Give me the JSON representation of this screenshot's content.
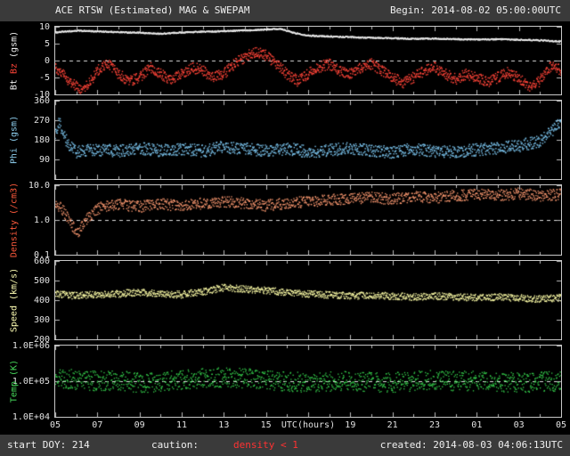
{
  "header": {
    "title": "ACE RTSW (Estimated) MAG & SWEPAM",
    "begin": "Begin: 2014-08-02 05:00:00UTC"
  },
  "footer": {
    "start_doy": "start DOY: 214",
    "caution_label": "caution:",
    "caution_value": "density < 1",
    "caution_color": "#ff3232",
    "created": "created: 2014-08-03 04:06:13UTC"
  },
  "colors": {
    "background": "#000000",
    "strip": "#3a3a3a",
    "frame": "#c8c8c8",
    "text": "#f0f0f0",
    "dashed_line": "#dddddd"
  },
  "chart_data": {
    "type": "scatter",
    "title": "ACE RTSW (Estimated) MAG & SWEPAM",
    "begin_time": "2014-08-02 05:00:00UTC",
    "created_time": "2014-08-03 04:06:13UTC",
    "start_doy": 214,
    "cadence_hours": 0.0167,
    "x": {
      "label": "UTC(hours)",
      "range": [
        5,
        29
      ],
      "tick_step_hours": 2,
      "ticks": [
        "05",
        "07",
        "09",
        "11",
        "13",
        "15",
        "17",
        "19",
        "21",
        "23",
        "01",
        "03",
        "05"
      ]
    },
    "panels": [
      {
        "id": "mag",
        "ylabel": "Bt Bz (gsm)",
        "ylabel_parts": [
          {
            "text": "Bt",
            "color": "#f2f2f2"
          },
          {
            "text": "Bz",
            "color": "#ff4438"
          },
          {
            "text": "(gsm)",
            "color": "#f2f2f2"
          }
        ],
        "scale": "linear",
        "ylim": [
          -10,
          10
        ],
        "yticks": [
          {
            "v": 10,
            "label": "10"
          },
          {
            "v": 5,
            "label": "5"
          },
          {
            "v": 0,
            "label": "0"
          },
          {
            "v": -5,
            "label": "-5"
          },
          {
            "v": -10,
            "label": "-10"
          }
        ],
        "dashed_at": 0,
        "series": [
          {
            "name": "Bt",
            "color": "#f2f2f2",
            "style": "line",
            "noise": 0.2,
            "dot": 1.3,
            "trend": [
              [
                5,
                8.3
              ],
              [
                6,
                8.8
              ],
              [
                7,
                8.6
              ],
              [
                8,
                8.4
              ],
              [
                9,
                8.2
              ],
              [
                10,
                7.9
              ],
              [
                11,
                8.3
              ],
              [
                12,
                8.5
              ],
              [
                13,
                8.7
              ],
              [
                14,
                8.9
              ],
              [
                15,
                9.2
              ],
              [
                15.7,
                9.4
              ],
              [
                16.3,
                8.2
              ],
              [
                17,
                7.4
              ],
              [
                18,
                7.1
              ],
              [
                19,
                6.9
              ],
              [
                20,
                6.7
              ],
              [
                21,
                6.6
              ],
              [
                22,
                6.4
              ],
              [
                23,
                6.5
              ],
              [
                24,
                6.3
              ],
              [
                25,
                6.2
              ],
              [
                26,
                6.3
              ],
              [
                27,
                6.1
              ],
              [
                28,
                6.0
              ],
              [
                29,
                5.6
              ]
            ]
          },
          {
            "name": "Bz",
            "color": "#ff4438",
            "style": "scatter",
            "noise": 1.6,
            "dot": 1.4,
            "trend": [
              [
                5,
                -2
              ],
              [
                5.5,
                -5
              ],
              [
                6,
                -7.5
              ],
              [
                6.3,
                -8.5
              ],
              [
                6.7,
                -6
              ],
              [
                7,
                -3
              ],
              [
                7.5,
                -1
              ],
              [
                8,
                -4
              ],
              [
                8.5,
                -6
              ],
              [
                9,
                -5
              ],
              [
                9.5,
                -2
              ],
              [
                10,
                -4
              ],
              [
                10.5,
                -6
              ],
              [
                11,
                -4
              ],
              [
                11.5,
                -2
              ],
              [
                12,
                -3
              ],
              [
                12.5,
                -5
              ],
              [
                13,
                -4
              ],
              [
                13.5,
                -1
              ],
              [
                14,
                1
              ],
              [
                14.5,
                2.5
              ],
              [
                15,
                1.5
              ],
              [
                15.5,
                -1
              ],
              [
                16,
                -4
              ],
              [
                16.5,
                -6
              ],
              [
                17,
                -4
              ],
              [
                17.5,
                -2
              ],
              [
                18,
                -1
              ],
              [
                18.5,
                -3
              ],
              [
                19,
                -4
              ],
              [
                19.5,
                -2
              ],
              [
                20,
                -1
              ],
              [
                20.5,
                -3
              ],
              [
                21,
                -5
              ],
              [
                21.5,
                -6.5
              ],
              [
                22,
                -5
              ],
              [
                22.5,
                -3
              ],
              [
                23,
                -2
              ],
              [
                23.5,
                -4
              ],
              [
                24,
                -5.5
              ],
              [
                24.5,
                -4
              ],
              [
                25,
                -5
              ],
              [
                25.5,
                -6.5
              ],
              [
                26,
                -5
              ],
              [
                26.5,
                -3.5
              ],
              [
                27,
                -5
              ],
              [
                27.3,
                -7
              ],
              [
                27.6,
                -8
              ],
              [
                28,
                -6
              ],
              [
                28.3,
                -3
              ],
              [
                28.6,
                -1.5
              ],
              [
                29,
                -3
              ]
            ]
          }
        ]
      },
      {
        "id": "phi",
        "ylabel": "Phi (gsm)",
        "ylabel_parts": [
          {
            "text": "Phi (gsm)",
            "color": "#8fd0f0"
          }
        ],
        "scale": "linear",
        "ylim": [
          0,
          360
        ],
        "yticks": [
          {
            "v": 360,
            "label": "360"
          },
          {
            "v": 270,
            "label": "270"
          },
          {
            "v": 180,
            "label": "180"
          },
          {
            "v": 90,
            "label": "90"
          }
        ],
        "dashed_at": null,
        "series": [
          {
            "name": "Phi",
            "color": "#79c1ea",
            "style": "scatter",
            "noise": 28,
            "dot": 1.4,
            "trend": [
              [
                5,
                210
              ],
              [
                5.2,
                265
              ],
              [
                5.4,
                200
              ],
              [
                5.7,
                150
              ],
              [
                6,
                125
              ],
              [
                7,
                135
              ],
              [
                8,
                128
              ],
              [
                9,
                140
              ],
              [
                10,
                130
              ],
              [
                11,
                138
              ],
              [
                12,
                128
              ],
              [
                13,
                148
              ],
              [
                14,
                138
              ],
              [
                15,
                128
              ],
              [
                16,
                140
              ],
              [
                17,
                125
              ],
              [
                18,
                132
              ],
              [
                19,
                142
              ],
              [
                20,
                130
              ],
              [
                21,
                122
              ],
              [
                22,
                138
              ],
              [
                23,
                128
              ],
              [
                24,
                126
              ],
              [
                25,
                134
              ],
              [
                26,
                142
              ],
              [
                27,
                152
              ],
              [
                28,
                175
              ],
              [
                28.4,
                205
              ],
              [
                28.7,
                235
              ],
              [
                29,
                262
              ]
            ]
          }
        ]
      },
      {
        "id": "density",
        "ylabel": "Density (/cm3)",
        "ylabel_parts": [
          {
            "text": "Density (/cm3)",
            "color": "#ff5a3c"
          }
        ],
        "scale": "log",
        "ylim": [
          0.1,
          10
        ],
        "yticks": [
          {
            "v": 10,
            "label": "10.0"
          },
          {
            "v": 1,
            "label": "1.0"
          },
          {
            "v": 0.1,
            "label": "0.1"
          }
        ],
        "dashed_at": 1,
        "series": [
          {
            "name": "Density",
            "color": "#ff9b72",
            "style": "scatter",
            "noise_factor": 1.45,
            "dot": 1.3,
            "trend": [
              [
                5,
                3.2
              ],
              [
                5.4,
                1.8
              ],
              [
                5.8,
                0.7
              ],
              [
                6.1,
                0.45
              ],
              [
                6.4,
                0.9
              ],
              [
                6.8,
                1.6
              ],
              [
                7.2,
                2.4
              ],
              [
                8,
                2.8
              ],
              [
                9,
                2.4
              ],
              [
                10,
                2.9
              ],
              [
                11,
                2.5
              ],
              [
                12,
                3.0
              ],
              [
                13,
                3.4
              ],
              [
                14,
                3.0
              ],
              [
                15,
                2.6
              ],
              [
                16,
                3.0
              ],
              [
                17,
                3.4
              ],
              [
                18,
                3.8
              ],
              [
                19,
                4.0
              ],
              [
                20,
                4.4
              ],
              [
                21,
                4.0
              ],
              [
                22,
                4.8
              ],
              [
                23,
                4.4
              ],
              [
                24,
                5.0
              ],
              [
                25,
                5.4
              ],
              [
                26,
                5.0
              ],
              [
                27,
                5.8
              ],
              [
                28,
                5.0
              ],
              [
                29,
                5.4
              ]
            ]
          }
        ]
      },
      {
        "id": "speed",
        "ylabel": "Speed (km/s)",
        "ylabel_parts": [
          {
            "text": "Speed (km/s)",
            "color": "#ffffb4"
          }
        ],
        "scale": "linear",
        "ylim": [
          200,
          600
        ],
        "yticks": [
          {
            "v": 600,
            "label": "600"
          },
          {
            "v": 500,
            "label": "500"
          },
          {
            "v": 400,
            "label": "400"
          },
          {
            "v": 300,
            "label": "300"
          },
          {
            "v": 200,
            "label": "200"
          }
        ],
        "dashed_at": null,
        "series": [
          {
            "name": "Speed",
            "color": "#ffffa8",
            "style": "scatter",
            "noise": 18,
            "dot": 1.3,
            "trend": [
              [
                5,
                430
              ],
              [
                6,
                422
              ],
              [
                7,
                428
              ],
              [
                8,
                432
              ],
              [
                9,
                440
              ],
              [
                10,
                432
              ],
              [
                11,
                428
              ],
              [
                12,
                442
              ],
              [
                13,
                465
              ],
              [
                14,
                456
              ],
              [
                15,
                450
              ],
              [
                16,
                440
              ],
              [
                17,
                432
              ],
              [
                18,
                426
              ],
              [
                19,
                421
              ],
              [
                20,
                426
              ],
              [
                21,
                420
              ],
              [
                22,
                416
              ],
              [
                23,
                421
              ],
              [
                24,
                416
              ],
              [
                25,
                412
              ],
              [
                26,
                416
              ],
              [
                27,
                411
              ],
              [
                28,
                406
              ],
              [
                29,
                412
              ]
            ]
          }
        ]
      },
      {
        "id": "temp",
        "ylabel": "Temp (K)",
        "ylabel_parts": [
          {
            "text": "Temp (K)",
            "color": "#46d95a"
          }
        ],
        "scale": "log",
        "ylim": [
          10000,
          1000000
        ],
        "yticks": [
          {
            "v": 1000000,
            "label": "1.0E+06"
          },
          {
            "v": 100000,
            "label": "1.0E+05"
          },
          {
            "v": 10000,
            "label": "1.0E+04"
          }
        ],
        "dashed_at": 100000,
        "series": [
          {
            "name": "Temp",
            "color": "#35d04c",
            "style": "scatter",
            "noise_factor": 1.9,
            "dot": 1.3,
            "trend": [
              [
                5,
                120000
              ],
              [
                6,
                110000
              ],
              [
                7,
                100000
              ],
              [
                8,
                105000
              ],
              [
                9,
                90000
              ],
              [
                10,
                95000
              ],
              [
                11,
                110000
              ],
              [
                12,
                120000
              ],
              [
                13,
                130000
              ],
              [
                14,
                120000
              ],
              [
                15,
                110000
              ],
              [
                16,
                100000
              ],
              [
                17,
                90000
              ],
              [
                18,
                95000
              ],
              [
                19,
                100000
              ],
              [
                20,
                95000
              ],
              [
                21,
                90000
              ],
              [
                22,
                100000
              ],
              [
                23,
                110000
              ],
              [
                24,
                100000
              ],
              [
                25,
                100000
              ],
              [
                26,
                95000
              ],
              [
                27,
                90000
              ],
              [
                28,
                95000
              ],
              [
                29,
                100000
              ]
            ]
          }
        ]
      }
    ]
  }
}
